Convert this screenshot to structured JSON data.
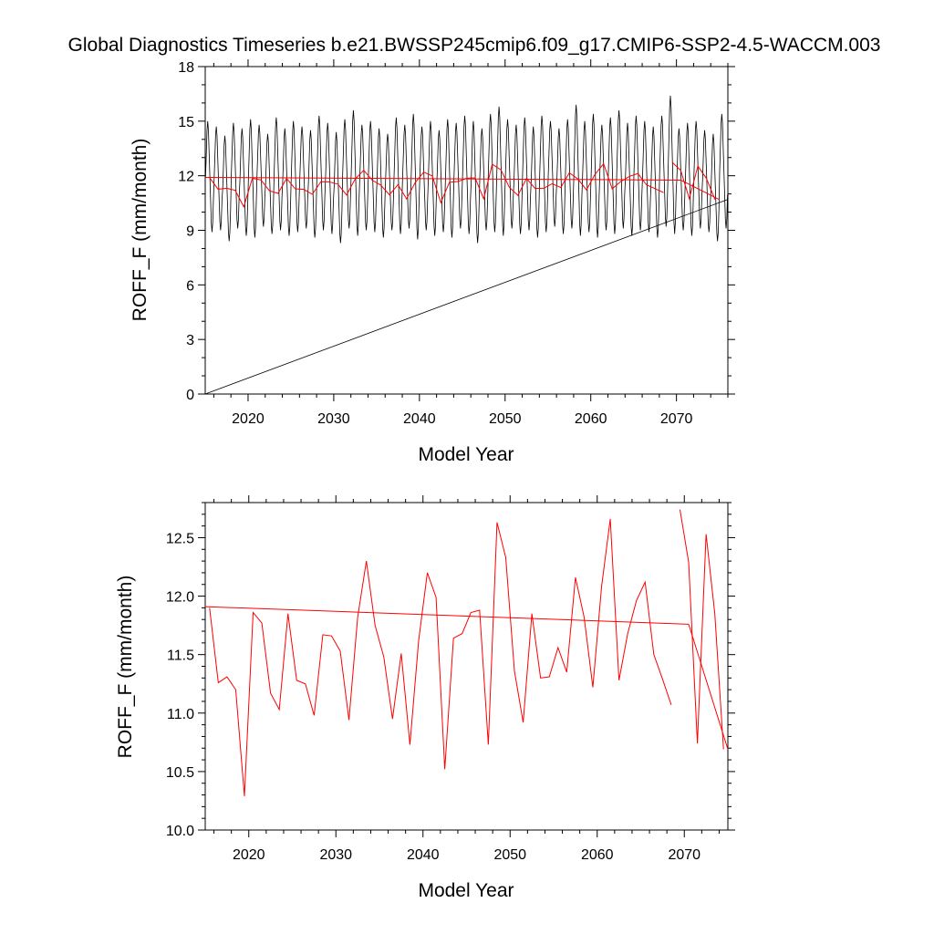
{
  "title": "Global Diagnostics Timeseries b.e21.BWSSP245cmip6.f09_g17.CMIP6-SSP2-4.5-WACCM.003",
  "colors": {
    "monthly": "#000000",
    "annual": "#ff0000",
    "frame": "#000000"
  },
  "chart_data": [
    {
      "type": "line",
      "name": "monthly-and-annual-timeseries",
      "xlabel": "Model Year",
      "ylabel": "ROFF_F (mm/month)",
      "xlim": [
        2015,
        2076
      ],
      "ylim": [
        0,
        18
      ],
      "xticks": [
        2020,
        2030,
        2040,
        2050,
        2060,
        2070
      ],
      "xtick_labels": [
        "2020",
        "2030",
        "2040",
        "2050",
        "2060",
        "2070"
      ],
      "yticks": [
        0,
        3,
        6,
        9,
        12,
        15,
        18
      ],
      "ytick_labels": [
        "0",
        "3",
        "6",
        "9",
        "12",
        "15",
        "18"
      ],
      "annual_max": [
        15.0,
        14.7,
        14.2,
        14.9,
        14.6,
        15.1,
        14.8,
        14.3,
        15.2,
        14.6,
        15.0,
        14.7,
        14.5,
        15.3,
        14.9,
        14.4,
        15.1,
        15.6,
        14.8,
        15.0,
        14.6,
        14.3,
        15.2,
        14.8,
        15.4,
        14.7,
        15.0,
        14.5,
        15.1,
        14.9,
        15.3,
        15.0,
        14.6,
        15.4,
        15.8,
        15.1,
        14.8,
        15.2,
        14.7,
        15.3,
        15.0,
        14.6,
        15.1,
        15.9,
        15.0,
        15.4,
        14.8,
        15.2,
        15.6,
        14.9,
        15.3,
        15.0,
        14.7,
        15.3,
        16.4,
        14.6,
        14.9,
        15.0,
        14.5,
        14.3,
        15.4
      ],
      "annual_min": [
        8.9,
        9.0,
        8.4,
        9.1,
        8.7,
        8.6,
        9.2,
        8.8,
        9.0,
        8.7,
        8.9,
        9.1,
        8.6,
        9.0,
        8.8,
        8.3,
        9.1,
        8.7,
        9.0,
        8.9,
        8.6,
        9.0,
        8.8,
        9.1,
        8.5,
        9.0,
        8.7,
        8.9,
        8.6,
        9.1,
        8.8,
        8.3,
        9.0,
        8.9,
        8.7,
        9.1,
        8.8,
        9.0,
        8.6,
        8.9,
        9.2,
        8.8,
        9.1,
        8.7,
        8.9,
        8.6,
        9.0,
        8.8,
        9.1,
        8.7,
        9.0,
        8.9,
        8.6,
        9.2,
        8.8,
        9.0,
        8.7,
        9.1,
        8.9,
        8.4,
        9.1
      ],
      "trend_line": {
        "x": [
          2015,
          2076
        ],
        "y": [
          0,
          10.7
        ]
      },
      "annual_mean_x": [
        2015.5,
        2016.5,
        2017.5,
        2018.5,
        2019.5,
        2020.5,
        2021.5,
        2022.5,
        2023.5,
        2024.5,
        2025.5,
        2026.5,
        2027.5,
        2028.5,
        2029.5,
        2030.5,
        2031.5,
        2032.5,
        2033.5,
        2034.5,
        2035.5,
        2036.5,
        2037.5,
        2038.5,
        2039.5,
        2040.5,
        2041.5,
        2042.5,
        2043.5,
        2044.5,
        2045.5,
        2046.5,
        2047.5,
        2048.5,
        2049.5,
        2050.5,
        2051.5,
        2052.5,
        2053.5,
        2054.5,
        2055.5,
        2056.5,
        2057.5,
        2058.5,
        2059.5,
        2060.5,
        2061.5,
        2062.5,
        2063.5,
        2064.5,
        2065.5,
        2066.5,
        2067.5,
        2068.5
      ],
      "annual_mean_y": [
        11.9,
        11.26,
        11.31,
        11.2,
        10.29,
        11.86,
        11.77,
        11.17,
        11.03,
        11.85,
        11.28,
        11.25,
        10.98,
        11.67,
        11.66,
        11.53,
        10.94,
        11.82,
        12.3,
        11.75,
        11.48,
        10.95,
        11.51,
        10.73,
        11.62,
        12.2,
        11.99,
        10.52,
        11.64,
        11.68,
        11.86,
        11.88,
        10.73,
        12.63,
        12.33,
        11.36,
        10.92,
        11.85,
        11.3,
        11.31,
        11.56,
        11.35,
        12.16,
        11.82,
        11.22,
        12.08,
        12.66,
        11.28,
        11.68,
        11.96,
        12.12,
        11.5,
        11.29,
        11.07
      ],
      "annual_mean_tail_x": [
        2069.5,
        2070.5,
        2071.5,
        2072.5,
        2073.5,
        2074.5
      ],
      "annual_mean_tail_y": [
        12.74,
        12.29,
        10.74,
        12.53,
        11.85,
        10.69
      ],
      "mean_fit": {
        "x": [
          2015,
          2070.5
        ],
        "y": [
          11.91,
          11.76
        ]
      },
      "end_fit": {
        "x": [
          2070.5,
          2075
        ],
        "y": [
          11.76,
          10.69
        ]
      }
    },
    {
      "type": "line",
      "name": "annual-mean-timeseries",
      "xlabel": "Model Year",
      "ylabel": "ROFF_F (mm/month)",
      "xlim": [
        2015,
        2075
      ],
      "ylim": [
        10.0,
        12.8
      ],
      "xticks": [
        2020,
        2030,
        2040,
        2050,
        2060,
        2070
      ],
      "xtick_labels": [
        "2020",
        "2030",
        "2040",
        "2050",
        "2060",
        "2070"
      ],
      "yticks": [
        10.0,
        10.5,
        11.0,
        11.5,
        12.0,
        12.5
      ],
      "ytick_labels": [
        "10.0",
        "10.5",
        "11.0",
        "11.5",
        "12.0",
        "12.5"
      ],
      "series_x": [
        2015.5,
        2016.5,
        2017.5,
        2018.5,
        2019.5,
        2020.5,
        2021.5,
        2022.5,
        2023.5,
        2024.5,
        2025.5,
        2026.5,
        2027.5,
        2028.5,
        2029.5,
        2030.5,
        2031.5,
        2032.5,
        2033.5,
        2034.5,
        2035.5,
        2036.5,
        2037.5,
        2038.5,
        2039.5,
        2040.5,
        2041.5,
        2042.5,
        2043.5,
        2044.5,
        2045.5,
        2046.5,
        2047.5,
        2048.5,
        2049.5,
        2050.5,
        2051.5,
        2052.5,
        2053.5,
        2054.5,
        2055.5,
        2056.5,
        2057.5,
        2058.5,
        2059.5,
        2060.5,
        2061.5,
        2062.5,
        2063.5,
        2064.5,
        2065.5,
        2066.5,
        2067.5,
        2068.5
      ],
      "series_y": [
        11.9,
        11.26,
        11.31,
        11.2,
        10.29,
        11.86,
        11.77,
        11.17,
        11.03,
        11.85,
        11.28,
        11.25,
        10.98,
        11.67,
        11.66,
        11.53,
        10.94,
        11.82,
        12.3,
        11.75,
        11.48,
        10.95,
        11.51,
        10.73,
        11.62,
        12.2,
        11.99,
        10.52,
        11.64,
        11.68,
        11.86,
        11.88,
        10.73,
        12.63,
        12.33,
        11.36,
        10.92,
        11.85,
        11.3,
        11.31,
        11.56,
        11.35,
        12.16,
        11.82,
        11.22,
        12.08,
        12.66,
        11.28,
        11.68,
        11.96,
        12.12,
        11.5,
        11.29,
        11.07
      ],
      "tail_x": [
        2069.5,
        2070.5,
        2071.5,
        2072.5,
        2073.5,
        2074.5
      ],
      "tail_y": [
        12.74,
        12.29,
        10.74,
        12.53,
        11.85,
        10.69
      ],
      "mean_fit": {
        "x": [
          2015,
          2070.5
        ],
        "y": [
          11.91,
          11.76
        ]
      },
      "end_fit": {
        "x": [
          2070.5,
          2075
        ],
        "y": [
          11.76,
          10.69
        ]
      }
    }
  ]
}
